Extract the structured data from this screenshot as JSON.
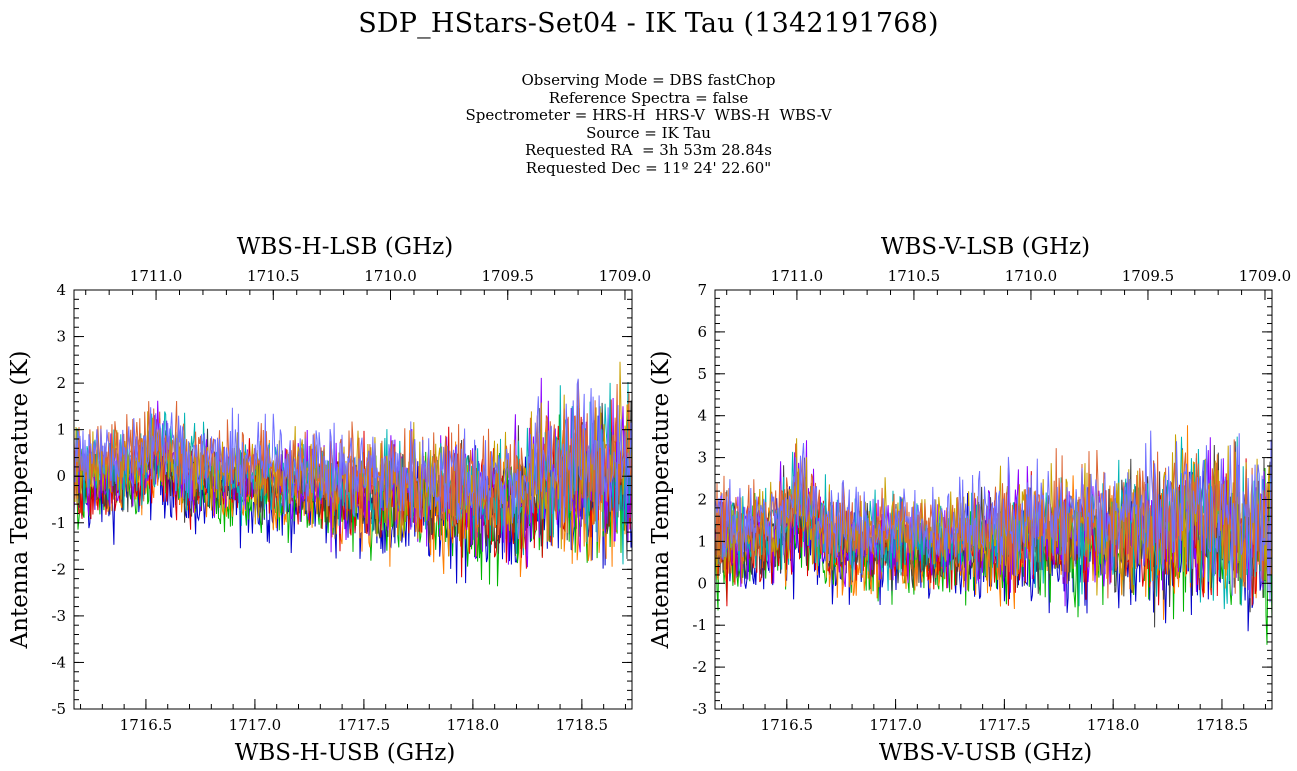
{
  "header": {
    "title": "SDP_HStars-Set04  - IK Tau (1342191768)",
    "meta_lines": [
      "Observing Mode = DBS fastChop",
      "Reference Spectra = false",
      "Spectrometer = HRS-H  HRS-V  WBS-H  WBS-V",
      "Source = IK Tau",
      "Requested RA  = 3h 53m 28.84s",
      "Requested Dec = 11º 24' 22.60\""
    ]
  },
  "colors": {
    "series": [
      "#0000cc",
      "#00b400",
      "#ff7f00",
      "#e00000",
      "#404040",
      "#8b00ff",
      "#00b4b4",
      "#c8a000",
      "#dc6432",
      "#7070ff"
    ]
  },
  "chart_data": [
    {
      "type": "line",
      "panel": "left",
      "top_xlabel": "WBS-H-LSB (GHz)",
      "bottom_xlabel": "WBS-H-USB (GHz)",
      "ylabel": "Antenna Temperature (K)",
      "xlim": [
        1716.17,
        1718.73
      ],
      "top_xlim": [
        1711.35,
        1708.97
      ],
      "ylim": [
        -5,
        4
      ],
      "bottom_ticks": [
        1716.5,
        1717.0,
        1717.5,
        1718.0,
        1718.5
      ],
      "bottom_tick_labels": [
        "1716.5",
        "1717.0",
        "1717.5",
        "1718.0",
        "1718.5"
      ],
      "top_ticks": [
        1711.0,
        1710.5,
        1710.0,
        1709.5,
        1709.0
      ],
      "top_tick_labels": [
        "1711.0",
        "1710.5",
        "1710.0",
        "1709.5",
        "1709.0"
      ],
      "y_ticks": [
        -5,
        -4,
        -3,
        -2,
        -1,
        0,
        1,
        2,
        3,
        4
      ],
      "y_tick_labels": [
        "-5",
        "-4",
        "-3",
        "-2",
        "-1",
        "0",
        "1",
        "2",
        "3",
        "4"
      ],
      "profile": {
        "x": [
          1716.17,
          1716.45,
          1716.55,
          1716.6,
          1716.72,
          1717.3,
          1717.32,
          1718.25,
          1718.32,
          1718.73
        ],
        "center": [
          0.0,
          0.2,
          0.6,
          0.4,
          0.0,
          -0.1,
          -0.2,
          -0.5,
          0.0,
          0.1
        ],
        "spread": [
          1.5,
          1.5,
          1.6,
          1.5,
          1.4,
          1.5,
          1.6,
          2.2,
          2.5,
          2.8
        ]
      },
      "series_count": 10
    },
    {
      "type": "line",
      "panel": "right",
      "top_xlabel": "WBS-V-LSB (GHz)",
      "bottom_xlabel": "WBS-V-USB (GHz)",
      "ylabel": "Antenna Temperature (K)",
      "xlim": [
        1716.17,
        1718.73
      ],
      "top_xlim": [
        1711.35,
        1708.97
      ],
      "ylim": [
        -3,
        7
      ],
      "bottom_ticks": [
        1716.5,
        1717.0,
        1717.5,
        1718.0,
        1718.5
      ],
      "bottom_tick_labels": [
        "1716.5",
        "1717.0",
        "1717.5",
        "1718.0",
        "1718.5"
      ],
      "top_ticks": [
        1711.0,
        1710.5,
        1710.0,
        1709.5,
        1709.0
      ],
      "top_tick_labels": [
        "1711.0",
        "1710.5",
        "1710.0",
        "1709.5",
        "1709.0"
      ],
      "y_ticks": [
        -3,
        -2,
        -1,
        0,
        1,
        2,
        3,
        4,
        5,
        6,
        7
      ],
      "y_tick_labels": [
        "-3",
        "-2",
        "-1",
        "0",
        "1",
        "2",
        "3",
        "4",
        "5",
        "6",
        "7"
      ],
      "profile": {
        "x": [
          1716.17,
          1716.45,
          1716.55,
          1716.6,
          1716.72,
          1717.3,
          1717.32,
          1718.25,
          1718.32,
          1718.73
        ],
        "center": [
          1.1,
          1.2,
          1.8,
          1.6,
          1.0,
          1.0,
          1.1,
          1.3,
          1.6,
          1.1
        ],
        "spread": [
          1.9,
          1.8,
          2.2,
          2.0,
          1.7,
          1.7,
          1.9,
          2.6,
          3.0,
          3.0
        ]
      },
      "series_count": 10
    }
  ]
}
